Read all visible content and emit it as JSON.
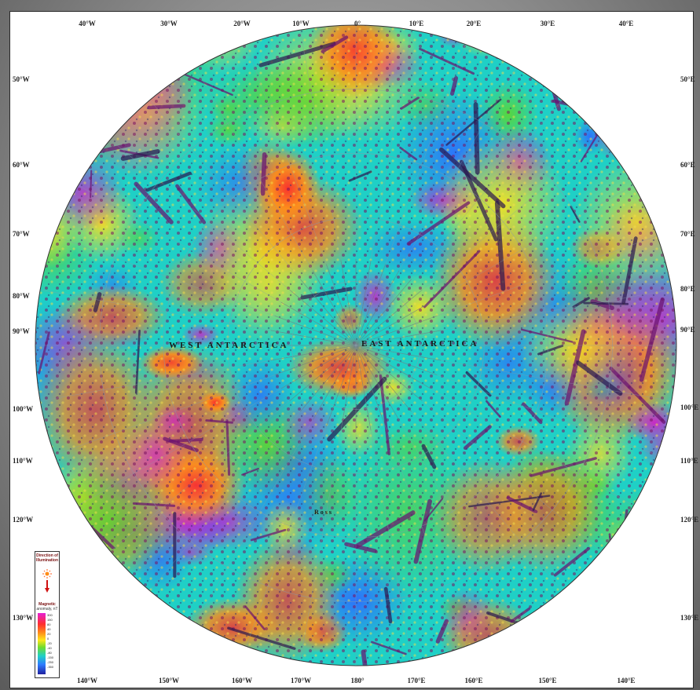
{
  "map": {
    "top_labels": [
      "40°W",
      "30°W",
      "20°W",
      "10°W",
      "0°",
      "10°E",
      "20°E",
      "30°E",
      "40°E"
    ],
    "bottom_labels": [
      "140°W",
      "150°W",
      "160°W",
      "170°W",
      "180°",
      "170°E",
      "160°E",
      "150°E",
      "140°E"
    ],
    "left_labels": [
      "50°W",
      "60°W",
      "70°W",
      "80°W",
      "90°W",
      "100°W",
      "110°W",
      "120°W",
      "130°W"
    ],
    "right_labels": [
      "50°E",
      "60°E",
      "70°E",
      "80°E",
      "90°E",
      "100°E",
      "110°E",
      "120°E",
      "130°E"
    ],
    "region_west": "WEST ANTARCTICA",
    "region_east": "EAST ANTARCTICA",
    "ross_label": "Ross",
    "colors": {
      "magenta": "#d21ec8",
      "red": "#ff2a2a",
      "orange": "#ff8c1a",
      "yellow": "#ffe01a",
      "green": "#5fd62d",
      "cyan": "#1fd0c6",
      "blue": "#2d6cff",
      "darkblue": "#2020a0"
    }
  },
  "legend": {
    "title_1": "Direction of",
    "title_2": "Illumination",
    "scale_title": "Magnetic",
    "scale_sub": "anomaly, nT",
    "ticks": [
      "300",
      "150",
      "80",
      "40",
      "20",
      "0",
      "-20",
      "-40",
      "-80",
      "-150",
      "-250",
      "-350"
    ]
  }
}
